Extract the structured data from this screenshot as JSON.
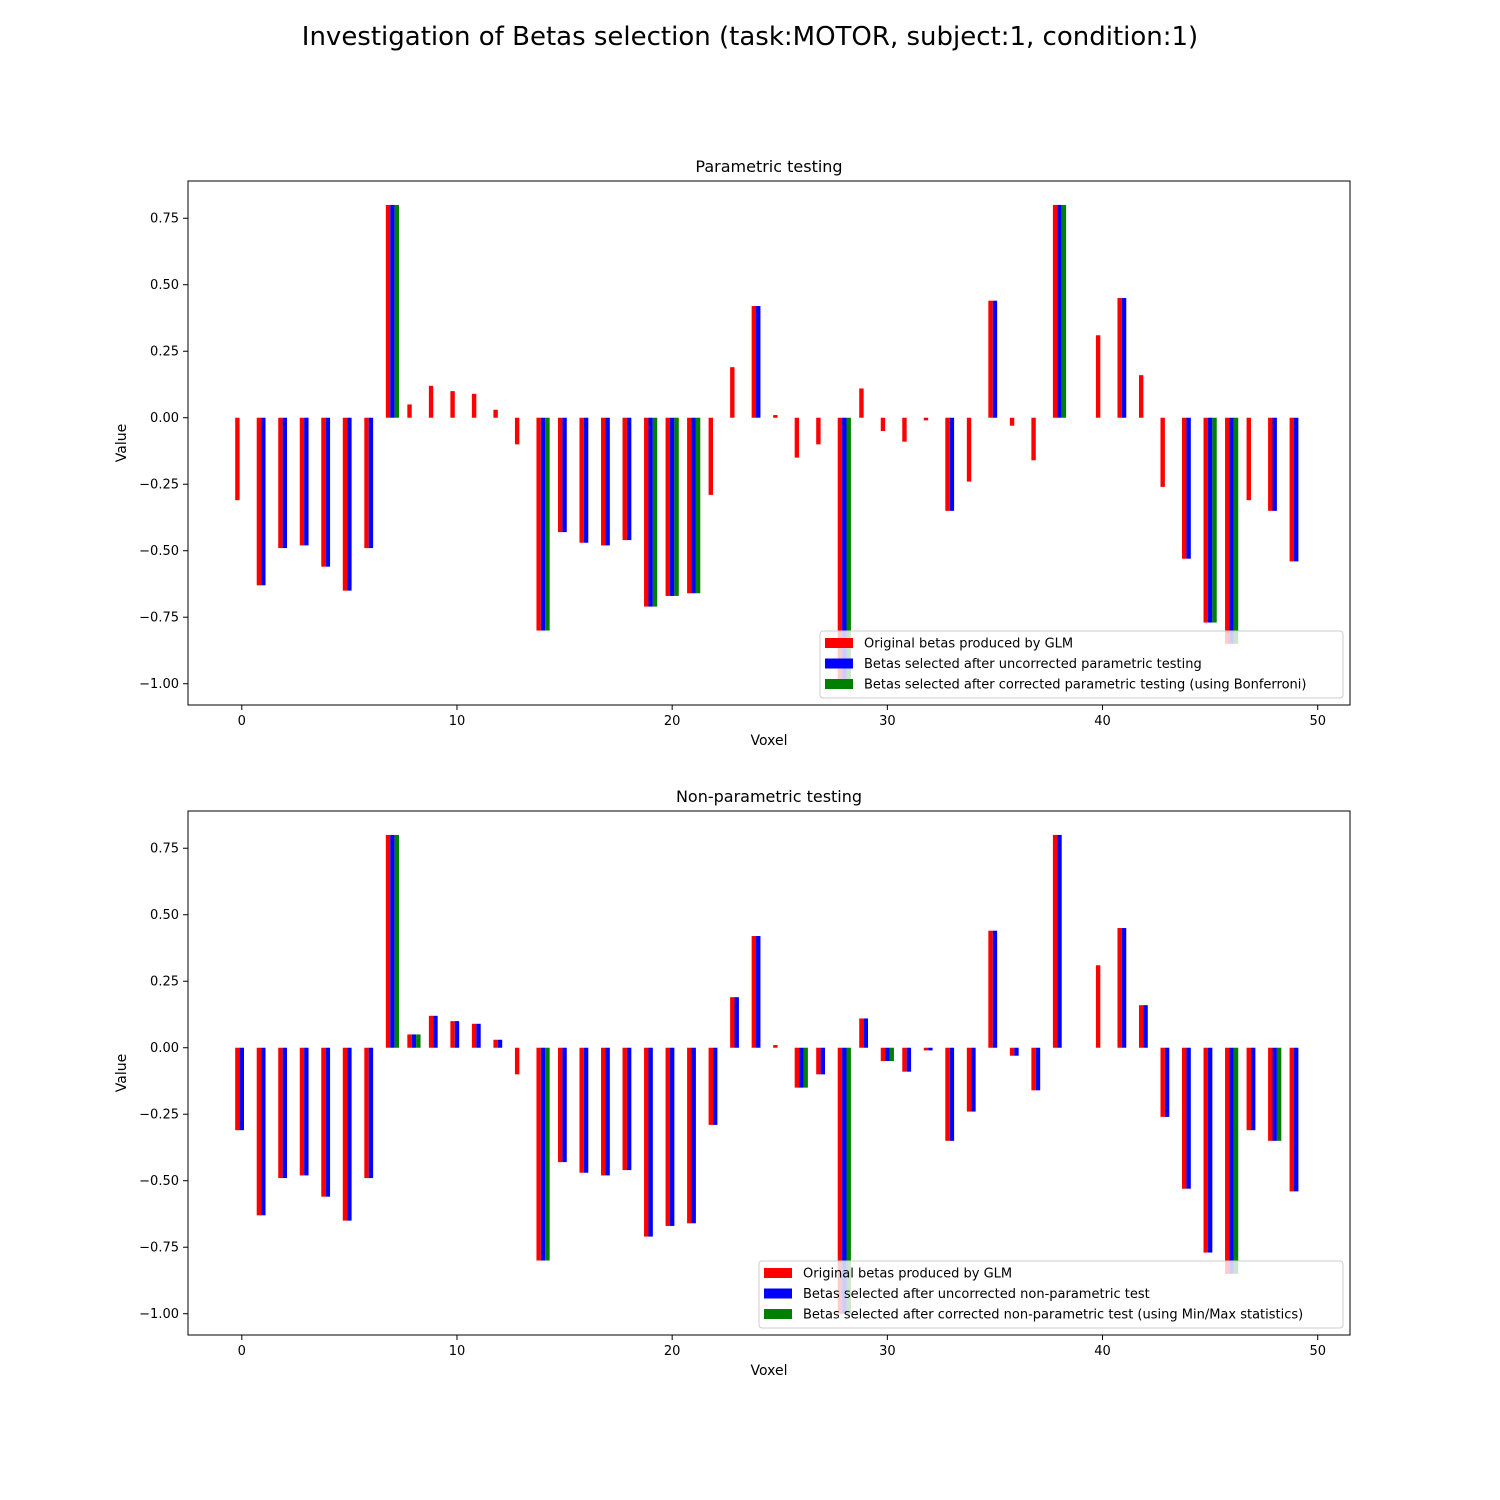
{
  "figure": {
    "suptitle": "Investigation of Betas selection (task:MOTOR, subject:1, condition:1)"
  },
  "chart_data": [
    {
      "type": "bar",
      "title": "Parametric testing",
      "xlabel": "Voxel",
      "ylabel": "Value",
      "xlim": [
        -2.5,
        51.5
      ],
      "ylim": [
        -1.08,
        0.89
      ],
      "xticks": [
        0,
        10,
        20,
        30,
        40,
        50
      ],
      "yticks": [
        -1.0,
        -0.75,
        -0.5,
        -0.25,
        0.0,
        0.25,
        0.5,
        0.75
      ],
      "ytick_labels": [
        "−1.00",
        "−0.75",
        "−0.50",
        "−0.25",
        "0.00",
        "0.25",
        "0.50",
        "0.75"
      ],
      "legend_position": "lower-right",
      "x": [
        0,
        1,
        2,
        3,
        4,
        5,
        6,
        7,
        8,
        9,
        10,
        11,
        12,
        13,
        14,
        15,
        16,
        17,
        18,
        19,
        20,
        21,
        22,
        23,
        24,
        25,
        26,
        27,
        28,
        29,
        30,
        31,
        32,
        33,
        34,
        35,
        36,
        37,
        38,
        39,
        40,
        41,
        42,
        43,
        44,
        45,
        46,
        47,
        48,
        49
      ],
      "series": [
        {
          "name": "Original betas produced by GLM",
          "color": "#ff0000",
          "values": [
            -0.31,
            -0.63,
            -0.49,
            -0.48,
            -0.56,
            -0.65,
            -0.49,
            0.8,
            0.05,
            0.12,
            0.1,
            0.09,
            0.03,
            -0.1,
            -0.8,
            -0.43,
            -0.47,
            -0.48,
            -0.46,
            -0.71,
            -0.67,
            -0.66,
            -0.29,
            0.19,
            0.42,
            0.01,
            -0.15,
            -0.1,
            -1.0,
            0.11,
            -0.05,
            -0.09,
            -0.01,
            -0.35,
            -0.24,
            0.44,
            -0.03,
            -0.16,
            0.8,
            0.0,
            0.31,
            0.45,
            0.16,
            -0.26,
            -0.53,
            -0.77,
            -0.85,
            -0.31,
            -0.35,
            -0.54
          ]
        },
        {
          "name": "Betas selected after uncorrected parametric testing",
          "color": "#0000ff",
          "values": [
            0,
            -0.63,
            -0.49,
            -0.48,
            -0.56,
            -0.65,
            -0.49,
            0.8,
            0,
            0,
            0,
            0,
            0,
            0,
            -0.8,
            -0.43,
            -0.47,
            -0.48,
            -0.46,
            -0.71,
            -0.67,
            -0.66,
            0,
            0,
            0.42,
            0,
            0,
            0,
            -1.0,
            0,
            0,
            0,
            0,
            -0.35,
            0,
            0.44,
            0,
            0,
            0.8,
            0,
            0,
            0.45,
            0,
            0,
            -0.53,
            -0.77,
            -0.85,
            0,
            -0.35,
            -0.54
          ]
        },
        {
          "name": "Betas selected after corrected parametric testing (using Bonferroni)",
          "color": "#008000",
          "values": [
            0,
            0,
            0,
            0,
            0,
            0,
            0,
            0.8,
            0,
            0,
            0,
            0,
            0,
            0,
            -0.8,
            0,
            0,
            0,
            0,
            -0.71,
            -0.67,
            -0.66,
            0,
            0,
            0,
            0,
            0,
            0,
            -1.0,
            0,
            0,
            0,
            0,
            0,
            0,
            0,
            0,
            0,
            0.8,
            0,
            0,
            0,
            0,
            0,
            0,
            -0.77,
            -0.85,
            0,
            0,
            0
          ]
        }
      ]
    },
    {
      "type": "bar",
      "title": "Non-parametric testing",
      "xlabel": "Voxel",
      "ylabel": "Value",
      "xlim": [
        -2.5,
        51.5
      ],
      "ylim": [
        -1.08,
        0.89
      ],
      "xticks": [
        0,
        10,
        20,
        30,
        40,
        50
      ],
      "yticks": [
        -1.0,
        -0.75,
        -0.5,
        -0.25,
        0.0,
        0.25,
        0.5,
        0.75
      ],
      "ytick_labels": [
        "−1.00",
        "−0.75",
        "−0.50",
        "−0.25",
        "0.00",
        "0.25",
        "0.50",
        "0.75"
      ],
      "legend_position": "lower-right",
      "x": [
        0,
        1,
        2,
        3,
        4,
        5,
        6,
        7,
        8,
        9,
        10,
        11,
        12,
        13,
        14,
        15,
        16,
        17,
        18,
        19,
        20,
        21,
        22,
        23,
        24,
        25,
        26,
        27,
        28,
        29,
        30,
        31,
        32,
        33,
        34,
        35,
        36,
        37,
        38,
        39,
        40,
        41,
        42,
        43,
        44,
        45,
        46,
        47,
        48,
        49
      ],
      "series": [
        {
          "name": "Original betas produced by GLM",
          "color": "#ff0000",
          "values": [
            -0.31,
            -0.63,
            -0.49,
            -0.48,
            -0.56,
            -0.65,
            -0.49,
            0.8,
            0.05,
            0.12,
            0.1,
            0.09,
            0.03,
            -0.1,
            -0.8,
            -0.43,
            -0.47,
            -0.48,
            -0.46,
            -0.71,
            -0.67,
            -0.66,
            -0.29,
            0.19,
            0.42,
            0.01,
            -0.15,
            -0.1,
            -1.0,
            0.11,
            -0.05,
            -0.09,
            -0.01,
            -0.35,
            -0.24,
            0.44,
            -0.03,
            -0.16,
            0.8,
            0.0,
            0.31,
            0.45,
            0.16,
            -0.26,
            -0.53,
            -0.77,
            -0.85,
            -0.31,
            -0.35,
            -0.54
          ]
        },
        {
          "name": "Betas selected after uncorrected non-parametric test",
          "color": "#0000ff",
          "values": [
            -0.31,
            -0.63,
            -0.49,
            -0.48,
            -0.56,
            -0.65,
            -0.49,
            0.8,
            0.05,
            0.12,
            0.1,
            0.09,
            0.03,
            0,
            -0.8,
            -0.43,
            -0.47,
            -0.48,
            -0.46,
            -0.71,
            -0.67,
            -0.66,
            -0.29,
            0.19,
            0.42,
            0,
            -0.15,
            -0.1,
            -1.0,
            0.11,
            -0.05,
            -0.09,
            -0.01,
            -0.35,
            -0.24,
            0.44,
            -0.03,
            -0.16,
            0.8,
            0,
            0,
            0.45,
            0.16,
            -0.26,
            -0.53,
            -0.77,
            -0.85,
            -0.31,
            -0.35,
            -0.54
          ]
        },
        {
          "name": "Betas selected after corrected non-parametric test (using Min/Max statistics)",
          "color": "#008000",
          "values": [
            0,
            0,
            0,
            0,
            0,
            0,
            0,
            0.8,
            0.05,
            0,
            0,
            0,
            0,
            0,
            -0.8,
            0,
            0,
            0,
            0,
            0,
            0,
            0,
            0,
            0,
            0,
            0,
            -0.15,
            0,
            -1.0,
            0,
            -0.05,
            0,
            0,
            0,
            0,
            0,
            0,
            0,
            0,
            0,
            0,
            0,
            0,
            0,
            0,
            0,
            -0.85,
            0,
            -0.35,
            0
          ]
        }
      ]
    }
  ]
}
